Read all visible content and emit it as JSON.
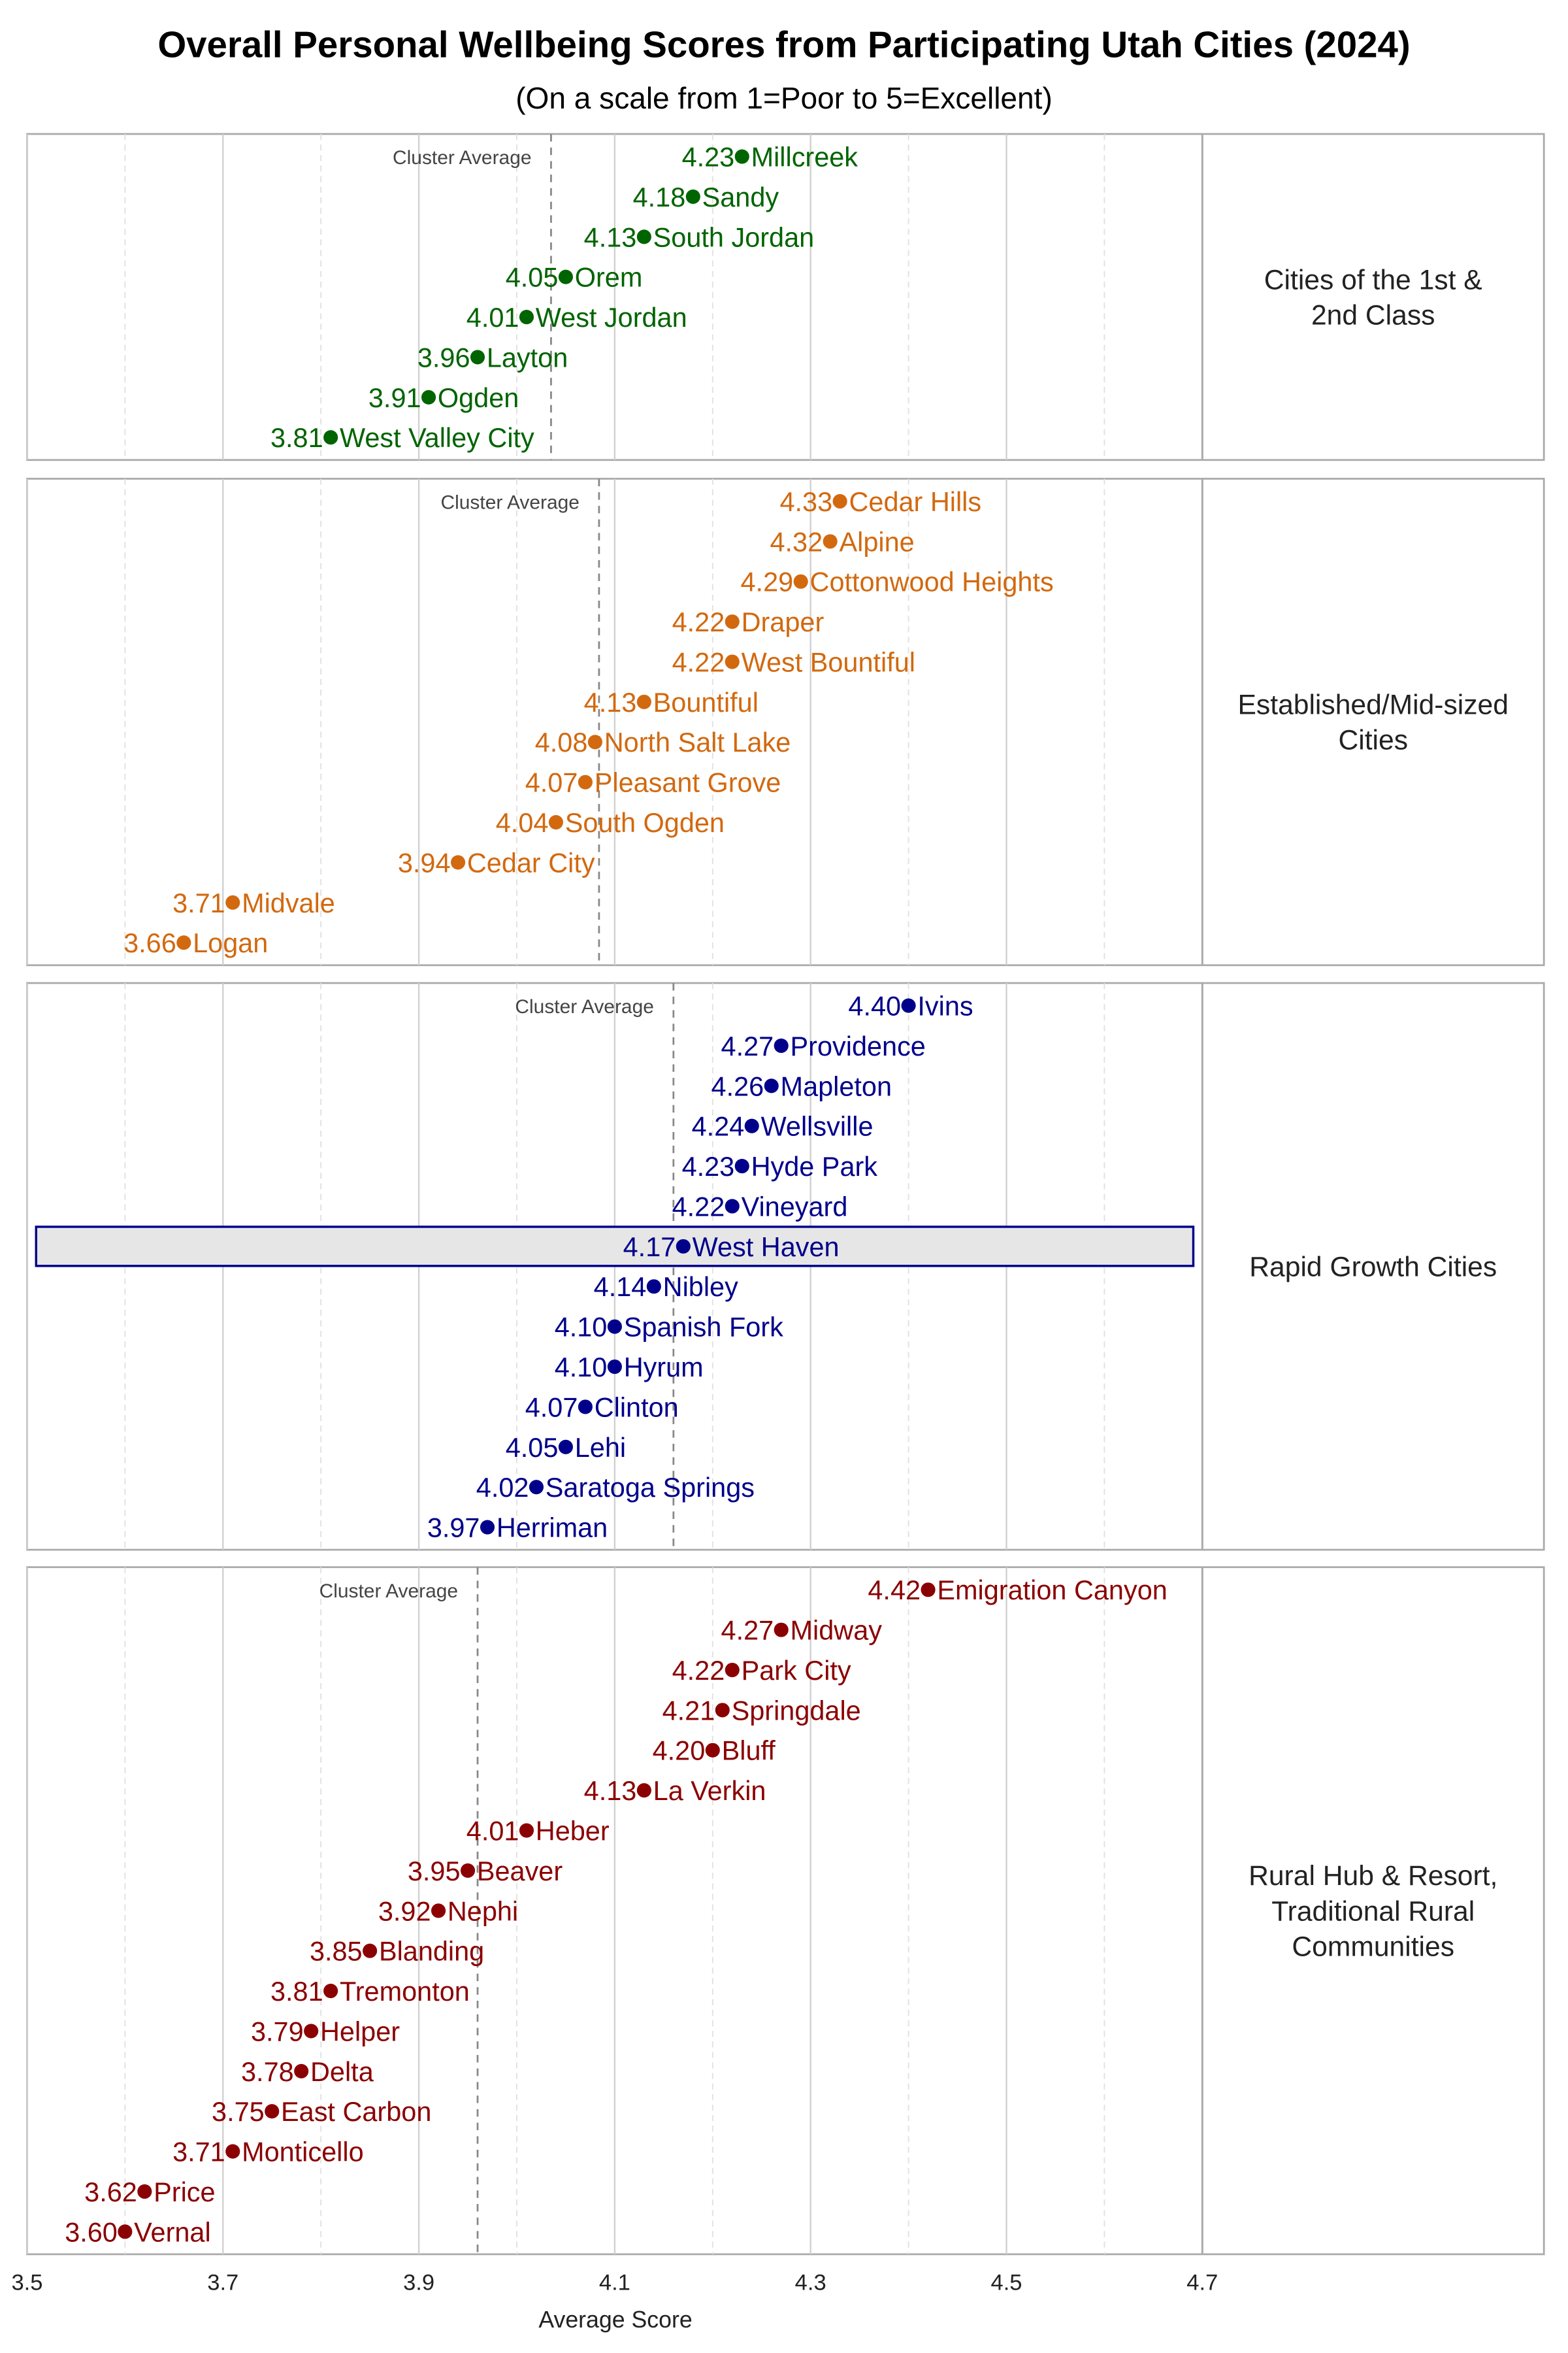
{
  "chart_data": {
    "type": "scatter",
    "title": "Overall Personal Wellbeing Scores from Participating Utah Cities (2024)",
    "subtitle": "(On a scale from 1=Poor to 5=Excellent)",
    "xlabel": "Average Score",
    "xlim": [
      3.5,
      4.7
    ],
    "xticks": [
      "3.5",
      "3.7",
      "3.9",
      "4.1",
      "4.3",
      "4.5",
      "4.7"
    ],
    "grid": true,
    "cluster_average_label": "Cluster Average",
    "highlight": "West Haven",
    "panels": [
      {
        "name": "Cities of the 1st & 2nd Class",
        "strip_lines": [
          "Cities of the 1st &",
          "2nd Class"
        ],
        "color": "#006400",
        "cluster_average": 4.035,
        "points": [
          {
            "city": "Millcreek",
            "value": 4.23,
            "label": "4.23"
          },
          {
            "city": "Sandy",
            "value": 4.18,
            "label": "4.18"
          },
          {
            "city": "South Jordan",
            "value": 4.13,
            "label": "4.13"
          },
          {
            "city": "Orem",
            "value": 4.05,
            "label": "4.05"
          },
          {
            "city": "West Jordan",
            "value": 4.01,
            "label": "4.01"
          },
          {
            "city": "Layton",
            "value": 3.96,
            "label": "3.96"
          },
          {
            "city": "Ogden",
            "value": 3.91,
            "label": "3.91"
          },
          {
            "city": "West Valley City",
            "value": 3.81,
            "label": "3.81"
          }
        ]
      },
      {
        "name": "Established/Mid-sized Cities",
        "strip_lines": [
          "Established/Mid-sized",
          "Cities"
        ],
        "color": "#D2690F",
        "cluster_average": 4.084,
        "points": [
          {
            "city": "Cedar Hills",
            "value": 4.33,
            "label": "4.33"
          },
          {
            "city": "Alpine",
            "value": 4.32,
            "label": "4.32"
          },
          {
            "city": "Cottonwood Heights",
            "value": 4.29,
            "label": "4.29"
          },
          {
            "city": "Draper",
            "value": 4.22,
            "label": "4.22"
          },
          {
            "city": "West Bountiful",
            "value": 4.22,
            "label": "4.22"
          },
          {
            "city": "Bountiful",
            "value": 4.13,
            "label": "4.13"
          },
          {
            "city": "North Salt Lake",
            "value": 4.08,
            "label": "4.08"
          },
          {
            "city": "Pleasant Grove",
            "value": 4.07,
            "label": "4.07"
          },
          {
            "city": "South Ogden",
            "value": 4.04,
            "label": "4.04"
          },
          {
            "city": "Cedar City",
            "value": 3.94,
            "label": "3.94"
          },
          {
            "city": "Midvale",
            "value": 3.71,
            "label": "3.71"
          },
          {
            "city": "Logan",
            "value": 3.66,
            "label": "3.66"
          }
        ]
      },
      {
        "name": "Rapid Growth Cities",
        "strip_lines": [
          "Rapid Growth Cities"
        ],
        "color": "#00008B",
        "cluster_average": 4.16,
        "points": [
          {
            "city": "Ivins",
            "value": 4.4,
            "label": "4.40"
          },
          {
            "city": "Providence",
            "value": 4.27,
            "label": "4.27"
          },
          {
            "city": "Mapleton",
            "value": 4.26,
            "label": "4.26"
          },
          {
            "city": "Wellsville",
            "value": 4.24,
            "label": "4.24"
          },
          {
            "city": "Hyde Park",
            "value": 4.23,
            "label": "4.23"
          },
          {
            "city": "Vineyard",
            "value": 4.22,
            "label": "4.22"
          },
          {
            "city": "West Haven",
            "value": 4.17,
            "label": "4.17"
          },
          {
            "city": "Nibley",
            "value": 4.14,
            "label": "4.14"
          },
          {
            "city": "Spanish Fork",
            "value": 4.1,
            "label": "4.10"
          },
          {
            "city": "Hyrum",
            "value": 4.1,
            "label": "4.10"
          },
          {
            "city": "Clinton",
            "value": 4.07,
            "label": "4.07"
          },
          {
            "city": "Lehi",
            "value": 4.05,
            "label": "4.05"
          },
          {
            "city": "Saratoga Springs",
            "value": 4.02,
            "label": "4.02"
          },
          {
            "city": "Herriman",
            "value": 3.97,
            "label": "3.97"
          }
        ]
      },
      {
        "name": "Rural Hub & Resort, Traditional Rural Communities",
        "strip_lines": [
          "Rural Hub & Resort,",
          "Traditional Rural",
          "Communities"
        ],
        "color": "#8B0000",
        "cluster_average": 3.96,
        "points": [
          {
            "city": "Emigration Canyon",
            "value": 4.42,
            "label": "4.42"
          },
          {
            "city": "Midway",
            "value": 4.27,
            "label": "4.27"
          },
          {
            "city": "Park City",
            "value": 4.22,
            "label": "4.22"
          },
          {
            "city": "Springdale",
            "value": 4.21,
            "label": "4.21"
          },
          {
            "city": "Bluff",
            "value": 4.2,
            "label": "4.20"
          },
          {
            "city": "La Verkin",
            "value": 4.13,
            "label": "4.13"
          },
          {
            "city": "Heber",
            "value": 4.01,
            "label": "4.01"
          },
          {
            "city": "Beaver",
            "value": 3.95,
            "label": "3.95"
          },
          {
            "city": "Nephi",
            "value": 3.92,
            "label": "3.92"
          },
          {
            "city": "Blanding",
            "value": 3.85,
            "label": "3.85"
          },
          {
            "city": "Tremonton",
            "value": 3.81,
            "label": "3.81"
          },
          {
            "city": "Helper",
            "value": 3.79,
            "label": "3.79"
          },
          {
            "city": "Delta",
            "value": 3.78,
            "label": "3.78"
          },
          {
            "city": "East Carbon",
            "value": 3.75,
            "label": "3.75"
          },
          {
            "city": "Monticello",
            "value": 3.71,
            "label": "3.71"
          },
          {
            "city": "Price",
            "value": 3.62,
            "label": "3.62"
          },
          {
            "city": "Vernal",
            "value": 3.6,
            "label": "3.60"
          }
        ]
      }
    ]
  }
}
